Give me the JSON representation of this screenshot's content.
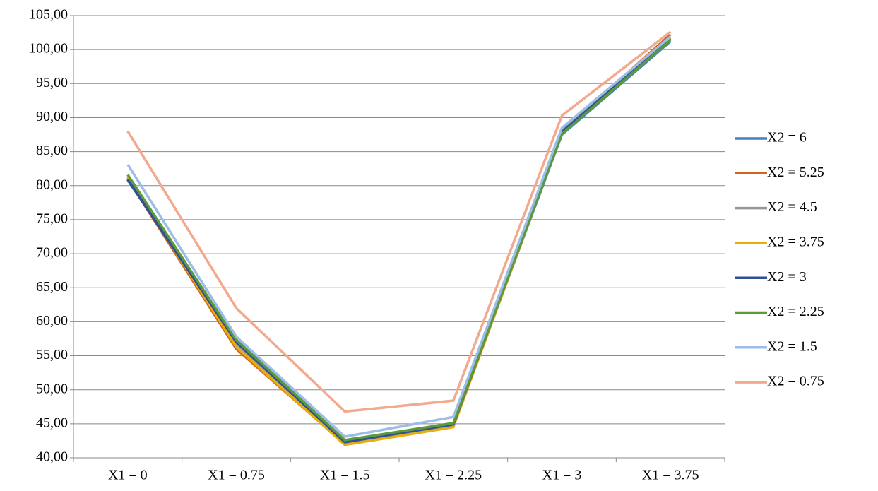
{
  "chart_data": {
    "type": "line",
    "categories": [
      "X1 = 0",
      "X1 = 0.75",
      "X1 = 1.5",
      "X1 = 2.25",
      "X1 = 3",
      "X1 = 3.75"
    ],
    "series": [
      {
        "name": "X2 = 6",
        "color": "#4a7ebb",
        "values": [
          80.8,
          57.5,
          42.5,
          44.8,
          87.5,
          101.2
        ]
      },
      {
        "name": "X2 = 5.25",
        "color": "#d1651c",
        "values": [
          81.0,
          56.0,
          42.0,
          44.6,
          88.0,
          102.2
        ]
      },
      {
        "name": "X2 = 4.5",
        "color": "#969696",
        "values": [
          81.2,
          56.8,
          42.2,
          44.7,
          88.2,
          101.8
        ]
      },
      {
        "name": "X2 = 3.75",
        "color": "#e8ac0c",
        "values": [
          81.3,
          56.3,
          41.9,
          44.5,
          87.8,
          101.5
        ]
      },
      {
        "name": "X2 = 3",
        "color": "#2f4f9a",
        "values": [
          80.9,
          57.0,
          42.3,
          44.9,
          87.9,
          101.6
        ]
      },
      {
        "name": "X2 = 2.25",
        "color": "#5b9a3a",
        "values": [
          81.6,
          57.3,
          42.6,
          45.1,
          87.6,
          101.4
        ]
      },
      {
        "name": "X2 = 1.5",
        "color": "#9dbde6",
        "values": [
          83.1,
          57.8,
          43.1,
          46.0,
          88.5,
          101.9
        ]
      },
      {
        "name": "X2 = 0.75",
        "color": "#f2a98e",
        "values": [
          88.0,
          62.0,
          46.8,
          48.4,
          90.3,
          102.6
        ]
      }
    ],
    "ylim": [
      40,
      105
    ],
    "yticks": [
      {
        "value": 40,
        "label": "40,00"
      },
      {
        "value": 45,
        "label": "45,00"
      },
      {
        "value": 50,
        "label": "50,00"
      },
      {
        "value": 55,
        "label": "55,00"
      },
      {
        "value": 60,
        "label": "60,00"
      },
      {
        "value": 65,
        "label": "65,00"
      },
      {
        "value": 70,
        "label": "70,00"
      },
      {
        "value": 75,
        "label": "75,00"
      },
      {
        "value": 80,
        "label": "80,00"
      },
      {
        "value": 85,
        "label": "85,00"
      },
      {
        "value": 90,
        "label": "90,00"
      },
      {
        "value": 95,
        "label": "95,00"
      },
      {
        "value": 100,
        "label": "100,00"
      },
      {
        "value": 105,
        "label": "105,00"
      }
    ],
    "grid": true,
    "legend_position": "right"
  }
}
